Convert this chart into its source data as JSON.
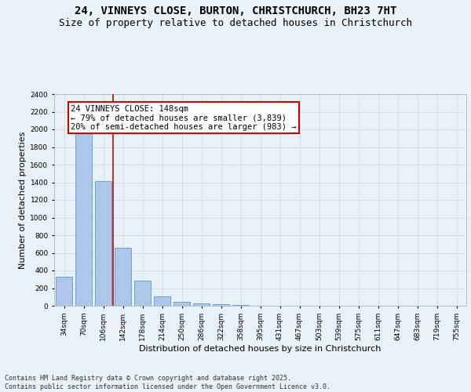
{
  "title_line1": "24, VINNEYS CLOSE, BURTON, CHRISTCHURCH, BH23 7HT",
  "title_line2": "Size of property relative to detached houses in Christchurch",
  "xlabel": "Distribution of detached houses by size in Christchurch",
  "ylabel": "Number of detached properties",
  "bar_labels": [
    "34sqm",
    "70sqm",
    "106sqm",
    "142sqm",
    "178sqm",
    "214sqm",
    "250sqm",
    "286sqm",
    "322sqm",
    "358sqm",
    "395sqm",
    "431sqm",
    "467sqm",
    "503sqm",
    "539sqm",
    "575sqm",
    "611sqm",
    "647sqm",
    "683sqm",
    "719sqm",
    "755sqm"
  ],
  "bar_values": [
    325,
    1985,
    1415,
    655,
    285,
    108,
    45,
    30,
    20,
    5,
    2,
    1,
    0,
    0,
    0,
    0,
    0,
    0,
    0,
    0,
    0
  ],
  "bar_color": "#aec6e8",
  "bar_edge_color": "#5b9bd5",
  "grid_color": "#c8d8e8",
  "background_color": "#e8f0f8",
  "vline_color": "#cc0000",
  "annotation_text": "24 VINNEYS CLOSE: 148sqm\n← 79% of detached houses are smaller (3,839)\n20% of semi-detached houses are larger (983) →",
  "annotation_box_color": "#ffffff",
  "annotation_box_edge": "#cc0000",
  "ylim": [
    0,
    2400
  ],
  "yticks": [
    0,
    200,
    400,
    600,
    800,
    1000,
    1200,
    1400,
    1600,
    1800,
    2000,
    2200,
    2400
  ],
  "footnote": "Contains HM Land Registry data © Crown copyright and database right 2025.\nContains public sector information licensed under the Open Government Licence v3.0.",
  "title_fontsize": 10,
  "subtitle_fontsize": 9,
  "axis_label_fontsize": 8,
  "tick_fontsize": 6.5,
  "annotation_fontsize": 7.5,
  "footnote_fontsize": 6
}
